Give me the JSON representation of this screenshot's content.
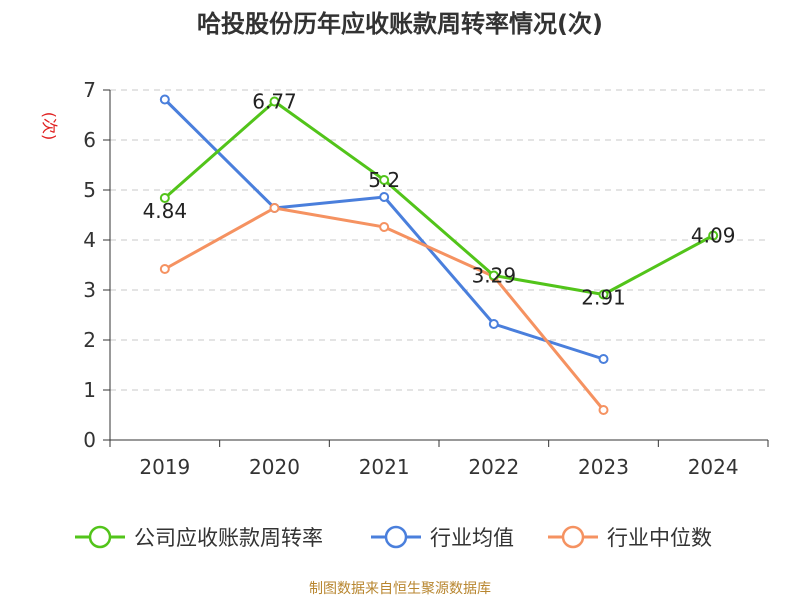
{
  "header": {
    "title": "哈投股份历年应收账款周转率情况(次)"
  },
  "footer": {
    "source": "制图数据来自恒生聚源数据库"
  },
  "chart_data": {
    "type": "line",
    "title": "哈投股份历年应收账款周转率情况(次)",
    "xlabel": "",
    "ylabel": "(次)",
    "ylim": [
      0,
      7
    ],
    "yticks": [
      0,
      1,
      2,
      3,
      4,
      5,
      6,
      7
    ],
    "categories": [
      "2019",
      "2020",
      "2021",
      "2022",
      "2023",
      "2024"
    ],
    "grid": true,
    "legend_position": "bottom",
    "series": [
      {
        "name": "公司应收账款周转率",
        "color": "#52c41a",
        "values": [
          4.84,
          6.77,
          5.2,
          3.29,
          2.91,
          4.09
        ],
        "labels": [
          "4.84",
          "6.77",
          "5.2",
          "3.29",
          "2.91",
          "4.09"
        ]
      },
      {
        "name": "行业均值",
        "color": "#4a7fdc",
        "values": [
          6.81,
          4.64,
          4.86,
          2.32,
          1.62,
          null
        ]
      },
      {
        "name": "行业中位数",
        "color": "#f59261",
        "values": [
          3.42,
          4.64,
          4.26,
          3.27,
          0.6,
          null
        ]
      }
    ]
  }
}
